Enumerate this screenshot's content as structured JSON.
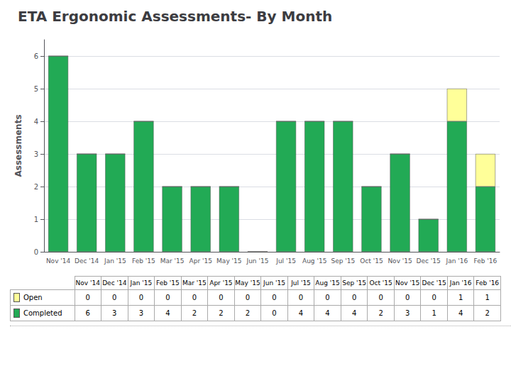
{
  "chart_data": {
    "type": "bar",
    "title": "ETA Ergonomic Assessments- By Month",
    "ylabel": "Assessments",
    "categories": [
      "Nov '14",
      "Dec '14",
      "Jan '15",
      "Feb '15",
      "Mar '15",
      "Apr '15",
      "May '15",
      "Jun '15",
      "Jul '15",
      "Aug '15",
      "Sep '15",
      "Oct '15",
      "Nov '15",
      "Dec '15",
      "Jan '16",
      "Feb '16"
    ],
    "series": [
      {
        "name": "Completed",
        "color": "#22AA55",
        "values": [
          6,
          3,
          3,
          4,
          2,
          2,
          2,
          0,
          4,
          4,
          4,
          2,
          3,
          1,
          4,
          2
        ]
      },
      {
        "name": "Open",
        "color": "#FFFF99",
        "values": [
          0,
          0,
          0,
          0,
          0,
          0,
          0,
          0,
          0,
          0,
          0,
          0,
          0,
          0,
          1,
          1
        ]
      }
    ],
    "stacked": true,
    "ylim": [
      0,
      6.5
    ],
    "yticks": [
      0,
      1,
      2,
      3,
      4,
      5,
      6
    ],
    "grid": true
  }
}
